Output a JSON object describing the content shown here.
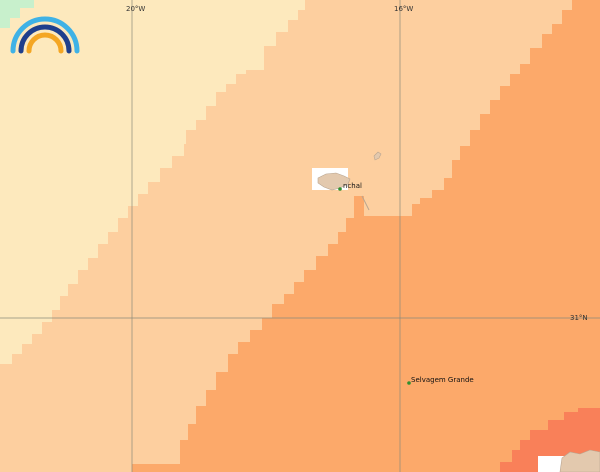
{
  "map": {
    "graticule": {
      "lon_labels": [
        "20°W",
        "16°W"
      ],
      "lat_labels": [
        "31°N"
      ]
    },
    "places": [
      {
        "name": "Funchal",
        "label": "nchal"
      },
      {
        "name": "Selvagem Grande",
        "label": "Selvagem Grande"
      }
    ],
    "colors": {
      "zone_1": "#fde9bd",
      "zone_2": "#fdcf9f",
      "zone_3": "#fca96a",
      "zone_4": "#f98059",
      "land": "#e3c9ae",
      "green_corner": "#c8f0cc",
      "graticule": "#8a8a7a",
      "place_dot": "#2f8f2f"
    },
    "logo": {
      "icon": "rainbow-arc-logo"
    }
  }
}
